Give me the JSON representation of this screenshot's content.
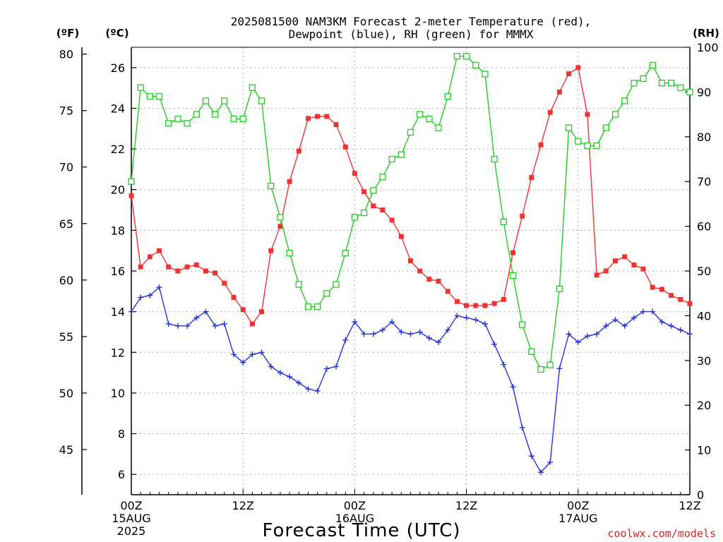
{
  "title_line1": "2025081500 NAM3KM Forecast 2-meter Temperature (red),",
  "title_line2": "Dewpoint (blue), RH (green) for MMMX",
  "xlabel": "Forecast Time (UTC)",
  "credit": "coolwx.com/models",
  "unit_f": "(ºF)",
  "unit_c": "(ºC)",
  "unit_rh": "(RH)",
  "colors": {
    "temperature": "#ee3333",
    "dewpoint": "#2233dd",
    "rh": "#22cc22",
    "grid": "#aaaaaa"
  },
  "chart_data": {
    "type": "line",
    "title": "2025081500 NAM3KM Forecast 2-meter Temperature (red), Dewpoint (blue), RH (green) for MMMX",
    "xlabel": "Forecast Time (UTC)",
    "x_unit": "forecast hour from 2025-08-15 00Z",
    "xlim": [
      0,
      60
    ],
    "x_ticks": [
      {
        "x": 0,
        "label": "00Z",
        "sub1": "15AUG",
        "sub2": "2025"
      },
      {
        "x": 12,
        "label": "12Z",
        "sub1": "",
        "sub2": ""
      },
      {
        "x": 24,
        "label": "00Z",
        "sub1": "16AUG",
        "sub2": ""
      },
      {
        "x": 36,
        "label": "12Z",
        "sub1": "",
        "sub2": ""
      },
      {
        "x": 48,
        "label": "00Z",
        "sub1": "17AUG",
        "sub2": ""
      },
      {
        "x": 60,
        "label": "12Z",
        "sub1": "",
        "sub2": ""
      }
    ],
    "y_left_c": {
      "label": "(ºC)",
      "lim": [
        5.0,
        27.0
      ],
      "ticks": [
        6,
        8,
        10,
        12,
        14,
        16,
        18,
        20,
        22,
        24,
        26
      ]
    },
    "y_left_f": {
      "label": "(ºF)",
      "ticks": [
        45,
        50,
        55,
        60,
        65,
        70,
        75,
        80
      ]
    },
    "y_right_rh": {
      "label": "(RH)",
      "lim": [
        0,
        100
      ],
      "ticks": [
        0,
        10,
        20,
        30,
        40,
        50,
        60,
        70,
        80,
        90,
        100
      ]
    },
    "grid": true,
    "x": [
      0,
      1,
      2,
      3,
      4,
      5,
      6,
      7,
      8,
      9,
      10,
      11,
      12,
      13,
      14,
      15,
      16,
      17,
      18,
      19,
      20,
      21,
      22,
      23,
      24,
      25,
      26,
      27,
      28,
      29,
      30,
      31,
      32,
      33,
      34,
      35,
      36,
      37,
      38,
      39,
      40,
      41,
      42,
      43,
      44,
      45,
      46,
      47,
      48,
      49,
      50,
      51,
      52,
      53,
      54,
      55,
      56,
      57,
      58,
      59,
      60
    ],
    "series": [
      {
        "name": "Temperature",
        "axis": "celsius",
        "marker": "filled-square",
        "values": [
          19.7,
          16.2,
          16.7,
          17.0,
          16.2,
          16.0,
          16.2,
          16.3,
          16.0,
          15.9,
          15.4,
          14.7,
          14.1,
          13.4,
          14.0,
          17.0,
          18.2,
          20.4,
          21.9,
          23.5,
          23.6,
          23.6,
          23.2,
          22.1,
          20.8,
          19.9,
          19.2,
          19.0,
          18.5,
          17.7,
          16.5,
          16.0,
          15.6,
          15.5,
          15.0,
          14.5,
          14.3,
          14.3,
          14.3,
          14.4,
          14.6,
          16.9,
          18.7,
          20.6,
          22.2,
          23.8,
          24.8,
          25.7,
          26.0,
          23.7,
          15.8,
          16.0,
          16.5,
          16.7,
          16.3,
          16.1,
          15.2,
          15.1,
          14.8,
          14.6,
          14.4
        ]
      },
      {
        "name": "Dewpoint",
        "axis": "celsius",
        "marker": "plus",
        "values": [
          14.0,
          14.7,
          14.8,
          15.2,
          13.4,
          13.3,
          13.3,
          13.7,
          14.0,
          13.3,
          13.4,
          11.9,
          11.5,
          11.9,
          12.0,
          11.3,
          11.0,
          10.8,
          10.5,
          10.2,
          10.1,
          11.2,
          11.3,
          12.6,
          13.5,
          12.9,
          12.9,
          13.1,
          13.5,
          13.0,
          12.9,
          13.0,
          12.7,
          12.5,
          13.1,
          13.8,
          13.7,
          13.6,
          13.4,
          12.4,
          11.4,
          10.3,
          8.3,
          6.9,
          6.1,
          6.6,
          11.2,
          12.9,
          12.5,
          12.8,
          12.9,
          13.3,
          13.6,
          13.3,
          13.7,
          14.0,
          14.0,
          13.5,
          13.3,
          13.1,
          12.9
        ]
      },
      {
        "name": "RH",
        "axis": "rh",
        "marker": "open-square",
        "values": [
          70,
          91,
          89,
          89,
          83,
          84,
          83,
          85,
          88,
          85,
          88,
          84,
          84,
          91,
          88,
          69,
          62,
          54,
          47,
          42,
          42,
          45,
          47,
          54,
          62,
          63,
          68,
          71,
          75,
          76,
          81,
          85,
          84,
          82,
          89,
          98,
          98,
          96,
          94,
          75,
          61,
          49,
          38,
          32,
          28,
          29,
          46,
          82,
          79,
          78,
          78,
          82,
          85,
          88,
          92,
          93,
          96,
          92,
          92,
          91,
          90
        ]
      }
    ]
  }
}
